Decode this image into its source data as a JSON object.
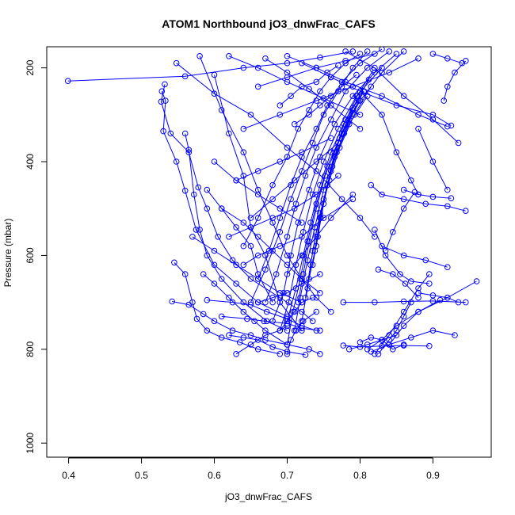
{
  "chart_data": {
    "type": "line",
    "title": "ATOM1 Northbound jO3_dnwFrac_CAFS",
    "xlabel": "jO3_dnwFrac_CAFS",
    "ylabel": "Pressure (mbar)",
    "xlim": [
      0.37,
      0.98
    ],
    "ylim": [
      1030,
      155
    ],
    "y_reversed": true,
    "x_ticks": [
      0.4,
      0.5,
      0.6,
      0.7,
      0.8,
      0.9
    ],
    "y_ticks": [
      200,
      400,
      600,
      800,
      1000
    ],
    "color": "#0000ff",
    "marker": "open-circle",
    "series": [
      {
        "x": [
          0.399,
          0.56,
          0.64,
          0.7,
          0.745,
          0.79
        ],
        "y": [
          228,
          218,
          200,
          190,
          178,
          165
        ]
      },
      {
        "x": [
          0.532,
          0.527,
          0.54,
          0.565,
          0.578,
          0.59,
          0.605,
          0.625,
          0.65,
          0.69,
          0.72,
          0.735
        ],
        "y": [
          235,
          272,
          340,
          380,
          455,
          500,
          560,
          610,
          650,
          690,
          720,
          740
        ]
      },
      {
        "x": [
          0.528,
          0.533,
          0.53,
          0.548,
          0.56,
          0.575,
          0.6,
          0.63,
          0.66,
          0.7
        ],
        "y": [
          250,
          270,
          335,
          400,
          462,
          545,
          620,
          660,
          700,
          730
        ]
      },
      {
        "x": [
          0.56,
          0.565,
          0.572,
          0.58,
          0.59,
          0.61,
          0.64,
          0.672,
          0.7
        ],
        "y": [
          340,
          375,
          470,
          545,
          600,
          650,
          700,
          740,
          760
        ]
      },
      {
        "x": [
          0.545,
          0.56,
          0.57,
          0.576,
          0.59,
          0.61,
          0.635,
          0.66,
          0.69
        ],
        "y": [
          615,
          640,
          700,
          735,
          760,
          775,
          785,
          800,
          810
        ]
      },
      {
        "x": [
          0.542,
          0.565,
          0.585,
          0.6,
          0.625,
          0.65,
          0.67,
          0.7,
          0.73,
          0.745
        ],
        "y": [
          698,
          705,
          725,
          740,
          760,
          770,
          780,
          790,
          800,
          810
        ]
      },
      {
        "x": [
          0.548,
          0.6,
          0.65,
          0.7,
          0.74,
          0.775,
          0.8,
          0.82
        ],
        "y": [
          190,
          255,
          300,
          370,
          420,
          480,
          520,
          560
        ]
      },
      {
        "x": [
          0.58,
          0.61,
          0.64,
          0.66,
          0.68,
          0.7,
          0.72,
          0.74,
          0.76
        ],
        "y": [
          175,
          290,
          380,
          460,
          530,
          600,
          650,
          690,
          720
        ]
      },
      {
        "x": [
          0.6,
          0.62,
          0.64,
          0.65,
          0.67,
          0.69,
          0.72
        ],
        "y": [
          215,
          340,
          430,
          540,
          600,
          700,
          760
        ]
      },
      {
        "x": [
          0.59,
          0.61,
          0.63,
          0.65,
          0.66,
          0.68
        ],
        "y": [
          460,
          500,
          540,
          580,
          640,
          700
        ]
      },
      {
        "x": [
          0.585,
          0.6,
          0.62,
          0.64,
          0.655,
          0.67,
          0.7
        ],
        "y": [
          640,
          660,
          690,
          720,
          740,
          760,
          790
        ]
      },
      {
        "x": [
          0.59,
          0.625,
          0.65,
          0.672,
          0.7,
          0.72,
          0.74
        ],
        "y": [
          695,
          700,
          705,
          720,
          735,
          750,
          760
        ]
      },
      {
        "x": [
          0.61,
          0.645,
          0.668,
          0.7,
          0.72,
          0.745
        ],
        "y": [
          730,
          735,
          740,
          745,
          755,
          760
        ]
      },
      {
        "x": [
          0.62,
          0.64,
          0.66,
          0.68,
          0.7,
          0.725
        ],
        "y": [
          770,
          775,
          780,
          795,
          805,
          812
        ]
      },
      {
        "x": [
          0.63,
          0.65,
          0.67,
          0.69,
          0.7
        ],
        "y": [
          810,
          790,
          770,
          760,
          750
        ]
      },
      {
        "x": [
          0.64,
          0.66,
          0.68,
          0.7,
          0.715,
          0.73,
          0.745,
          0.76,
          0.78,
          0.8
        ],
        "y": [
          580,
          520,
          450,
          390,
          330,
          290,
          250,
          220,
          190,
          170
        ]
      },
      {
        "x": [
          0.65,
          0.67,
          0.69,
          0.705,
          0.72,
          0.735,
          0.75,
          0.77,
          0.79,
          0.81
        ],
        "y": [
          700,
          630,
          550,
          480,
          420,
          360,
          300,
          250,
          200,
          165
        ]
      },
      {
        "x": [
          0.66,
          0.675,
          0.69,
          0.705,
          0.72,
          0.74,
          0.755,
          0.775,
          0.8,
          0.83
        ],
        "y": [
          650,
          590,
          520,
          450,
          390,
          330,
          280,
          230,
          190,
          160
        ]
      },
      {
        "x": [
          0.67,
          0.685,
          0.7,
          0.712,
          0.725,
          0.74,
          0.76,
          0.78,
          0.81,
          0.84
        ],
        "y": [
          700,
          640,
          560,
          490,
          430,
          370,
          310,
          250,
          200,
          165
        ]
      },
      {
        "x": [
          0.68,
          0.695,
          0.705,
          0.715,
          0.73,
          0.745,
          0.765,
          0.79,
          0.82,
          0.85
        ],
        "y": [
          740,
          680,
          600,
          530,
          460,
          390,
          320,
          260,
          210,
          170
        ]
      },
      {
        "x": [
          0.69,
          0.702,
          0.712,
          0.722,
          0.735,
          0.75,
          0.77,
          0.795,
          0.83
        ],
        "y": [
          760,
          700,
          620,
          550,
          470,
          400,
          330,
          260,
          200
        ]
      },
      {
        "x": [
          0.7,
          0.708,
          0.718,
          0.728,
          0.74,
          0.755,
          0.775,
          0.8,
          0.83,
          0.86
        ],
        "y": [
          790,
          720,
          650,
          570,
          490,
          410,
          340,
          270,
          210,
          165
        ]
      },
      {
        "x": [
          0.7,
          0.712,
          0.722,
          0.732,
          0.745,
          0.76,
          0.78,
          0.805
        ],
        "y": [
          740,
          670,
          600,
          530,
          450,
          380,
          310,
          250
        ]
      },
      {
        "x": [
          0.71,
          0.718,
          0.728,
          0.738,
          0.75,
          0.765,
          0.785,
          0.81
        ],
        "y": [
          760,
          690,
          610,
          540,
          460,
          390,
          320,
          260
        ]
      },
      {
        "x": [
          0.715,
          0.722,
          0.73,
          0.74,
          0.752,
          0.77,
          0.79
        ],
        "y": [
          700,
          640,
          570,
          500,
          430,
          360,
          290
        ]
      },
      {
        "x": [
          0.72,
          0.728,
          0.735,
          0.745,
          0.758,
          0.772,
          0.792,
          0.815
        ],
        "y": [
          740,
          670,
          590,
          510,
          440,
          370,
          300,
          240
        ]
      },
      {
        "x": [
          0.725,
          0.732,
          0.74,
          0.75,
          0.762,
          0.778,
          0.798
        ],
        "y": [
          690,
          620,
          550,
          480,
          410,
          340,
          270
        ]
      },
      {
        "x": [
          0.73,
          0.738,
          0.745,
          0.755,
          0.768,
          0.785,
          0.805
        ],
        "y": [
          650,
          590,
          520,
          450,
          380,
          310,
          250
        ]
      },
      {
        "x": [
          0.735,
          0.742,
          0.75,
          0.76,
          0.772,
          0.79,
          0.812
        ],
        "y": [
          620,
          560,
          490,
          420,
          350,
          285,
          225
        ]
      },
      {
        "x": [
          0.74,
          0.746,
          0.755,
          0.765,
          0.778,
          0.796,
          0.818
        ],
        "y": [
          580,
          520,
          450,
          380,
          320,
          260,
          205
        ]
      },
      {
        "x": [
          0.71,
          0.73,
          0.745,
          0.76,
          0.775,
          0.795
        ],
        "y": [
          320,
          300,
          280,
          260,
          240,
          215
        ]
      },
      {
        "x": [
          0.69,
          0.705,
          0.72,
          0.74,
          0.755,
          0.77
        ],
        "y": [
          280,
          260,
          240,
          230,
          210,
          195
        ]
      },
      {
        "x": [
          0.66,
          0.7,
          0.74,
          0.78,
          0.82
        ],
        "y": [
          240,
          220,
          200,
          185,
          170
        ]
      },
      {
        "x": [
          0.64,
          0.69,
          0.74,
          0.79,
          0.84,
          0.88
        ],
        "y": [
          330,
          300,
          270,
          240,
          210,
          180
        ]
      },
      {
        "x": [
          0.62,
          0.66,
          0.7,
          0.75,
          0.8
        ],
        "y": [
          175,
          200,
          230,
          265,
          300
        ]
      },
      {
        "x": [
          0.67,
          0.7,
          0.73,
          0.76,
          0.8
        ],
        "y": [
          180,
          210,
          245,
          280,
          330
        ]
      },
      {
        "x": [
          0.7,
          0.74,
          0.78,
          0.83,
          0.88,
          0.92
        ],
        "y": [
          175,
          200,
          230,
          260,
          300,
          325
        ]
      },
      {
        "x": [
          0.72,
          0.76,
          0.8,
          0.85,
          0.9,
          0.925
        ],
        "y": [
          190,
          220,
          250,
          280,
          300,
          323
        ]
      },
      {
        "x": [
          0.78,
          0.82,
          0.86,
          0.9,
          0.935
        ],
        "y": [
          165,
          200,
          260,
          310,
          360
        ]
      },
      {
        "x": [
          0.9,
          0.92,
          0.94
        ],
        "y": [
          170,
          180,
          190
        ]
      },
      {
        "x": [
          0.945,
          0.93,
          0.92,
          0.915
        ],
        "y": [
          185,
          210,
          240,
          270
        ]
      },
      {
        "x": [
          0.8,
          0.83,
          0.85,
          0.87,
          0.88
        ],
        "y": [
          250,
          300,
          380,
          440,
          470
        ]
      },
      {
        "x": [
          0.875,
          0.86,
          0.845,
          0.835
        ],
        "y": [
          465,
          500,
          550,
          590
        ]
      },
      {
        "x": [
          0.82,
          0.835,
          0.855,
          0.87,
          0.895
        ],
        "y": [
          545,
          600,
          640,
          655,
          660
        ]
      },
      {
        "x": [
          0.815,
          0.83,
          0.86,
          0.89,
          0.92,
          0.945
        ],
        "y": [
          450,
          470,
          480,
          490,
          495,
          505
        ]
      },
      {
        "x": [
          0.86,
          0.88,
          0.9,
          0.925
        ],
        "y": [
          460,
          470,
          475,
          478
        ]
      },
      {
        "x": [
          0.83,
          0.86,
          0.89,
          0.92
        ],
        "y": [
          580,
          600,
          610,
          625
        ]
      },
      {
        "x": [
          0.88,
          0.9,
          0.92
        ],
        "y": [
          330,
          400,
          460
        ]
      },
      {
        "x": [
          0.777,
          0.82,
          0.86,
          0.9,
          0.945
        ],
        "y": [
          700,
          700,
          698,
          697,
          700
        ]
      },
      {
        "x": [
          0.96,
          0.92,
          0.88,
          0.85,
          0.83,
          0.81
        ],
        "y": [
          655,
          690,
          720,
          750,
          780,
          800
        ]
      },
      {
        "x": [
          0.895,
          0.88,
          0.86,
          0.84,
          0.82
        ],
        "y": [
          640,
          670,
          720,
          770,
          810
        ]
      },
      {
        "x": [
          0.91,
          0.88,
          0.86,
          0.84
        ],
        "y": [
          695,
          720,
          750,
          790
        ]
      },
      {
        "x": [
          0.93,
          0.9,
          0.87,
          0.84,
          0.815
        ],
        "y": [
          770,
          760,
          775,
          790,
          805
        ]
      },
      {
        "x": [
          0.777,
          0.8,
          0.83,
          0.86,
          0.895
        ],
        "y": [
          792,
          795,
          793,
          792,
          793
        ]
      },
      {
        "x": [
          0.785,
          0.81,
          0.83,
          0.85
        ],
        "y": [
          800,
          790,
          780,
          770
        ]
      },
      {
        "x": [
          0.8,
          0.815,
          0.83,
          0.845,
          0.86
        ],
        "y": [
          785,
          775,
          780,
          800,
          790
        ]
      },
      {
        "x": [
          0.825,
          0.845,
          0.862,
          0.88
        ],
        "y": [
          630,
          640,
          660,
          690
        ]
      },
      {
        "x": [
          0.87,
          0.86,
          0.85,
          0.84,
          0.825
        ],
        "y": [
          700,
          730,
          760,
          780,
          810
        ]
      },
      {
        "x": [
          0.935,
          0.92,
          0.9,
          0.88
        ],
        "y": [
          700,
          690,
          685,
          680
        ]
      },
      {
        "x": [
          0.7,
          0.72,
          0.74,
          0.76,
          0.79
        ],
        "y": [
          640,
          600,
          560,
          520,
          470
        ]
      },
      {
        "x": [
          0.65,
          0.68,
          0.71,
          0.74,
          0.77
        ],
        "y": [
          520,
          480,
          440,
          400,
          360
        ]
      },
      {
        "x": [
          0.63,
          0.66,
          0.69,
          0.72,
          0.76
        ],
        "y": [
          440,
          420,
          400,
          380,
          350
        ]
      },
      {
        "x": [
          0.6,
          0.63,
          0.66,
          0.69,
          0.72
        ],
        "y": [
          400,
          440,
          470,
          500,
          530
        ]
      },
      {
        "x": [
          0.57,
          0.6,
          0.63,
          0.66,
          0.69,
          0.72
        ],
        "y": [
          560,
          590,
          620,
          650,
          680,
          700
        ]
      },
      {
        "x": [
          0.61,
          0.64,
          0.66,
          0.68,
          0.7,
          0.72,
          0.745
        ],
        "y": [
          500,
          530,
          560,
          590,
          620,
          650,
          680
        ]
      },
      {
        "x": [
          0.62,
          0.65,
          0.68,
          0.71,
          0.74,
          0.77
        ],
        "y": [
          560,
          540,
          520,
          500,
          470,
          430
        ]
      },
      {
        "x": [
          0.64,
          0.66,
          0.69,
          0.72,
          0.75,
          0.79
        ],
        "y": [
          620,
          600,
          580,
          560,
          520,
          480
        ]
      },
      {
        "x": [
          0.66,
          0.68,
          0.7,
          0.72,
          0.745
        ],
        "y": [
          700,
          690,
          680,
          660,
          640
        ]
      },
      {
        "x": [
          0.69,
          0.7,
          0.71,
          0.72,
          0.735
        ],
        "y": [
          760,
          740,
          720,
          700,
          690
        ]
      },
      {
        "x": [
          0.7,
          0.705,
          0.712,
          0.722,
          0.74
        ],
        "y": [
          810,
          780,
          760,
          740,
          720
        ]
      }
    ]
  }
}
